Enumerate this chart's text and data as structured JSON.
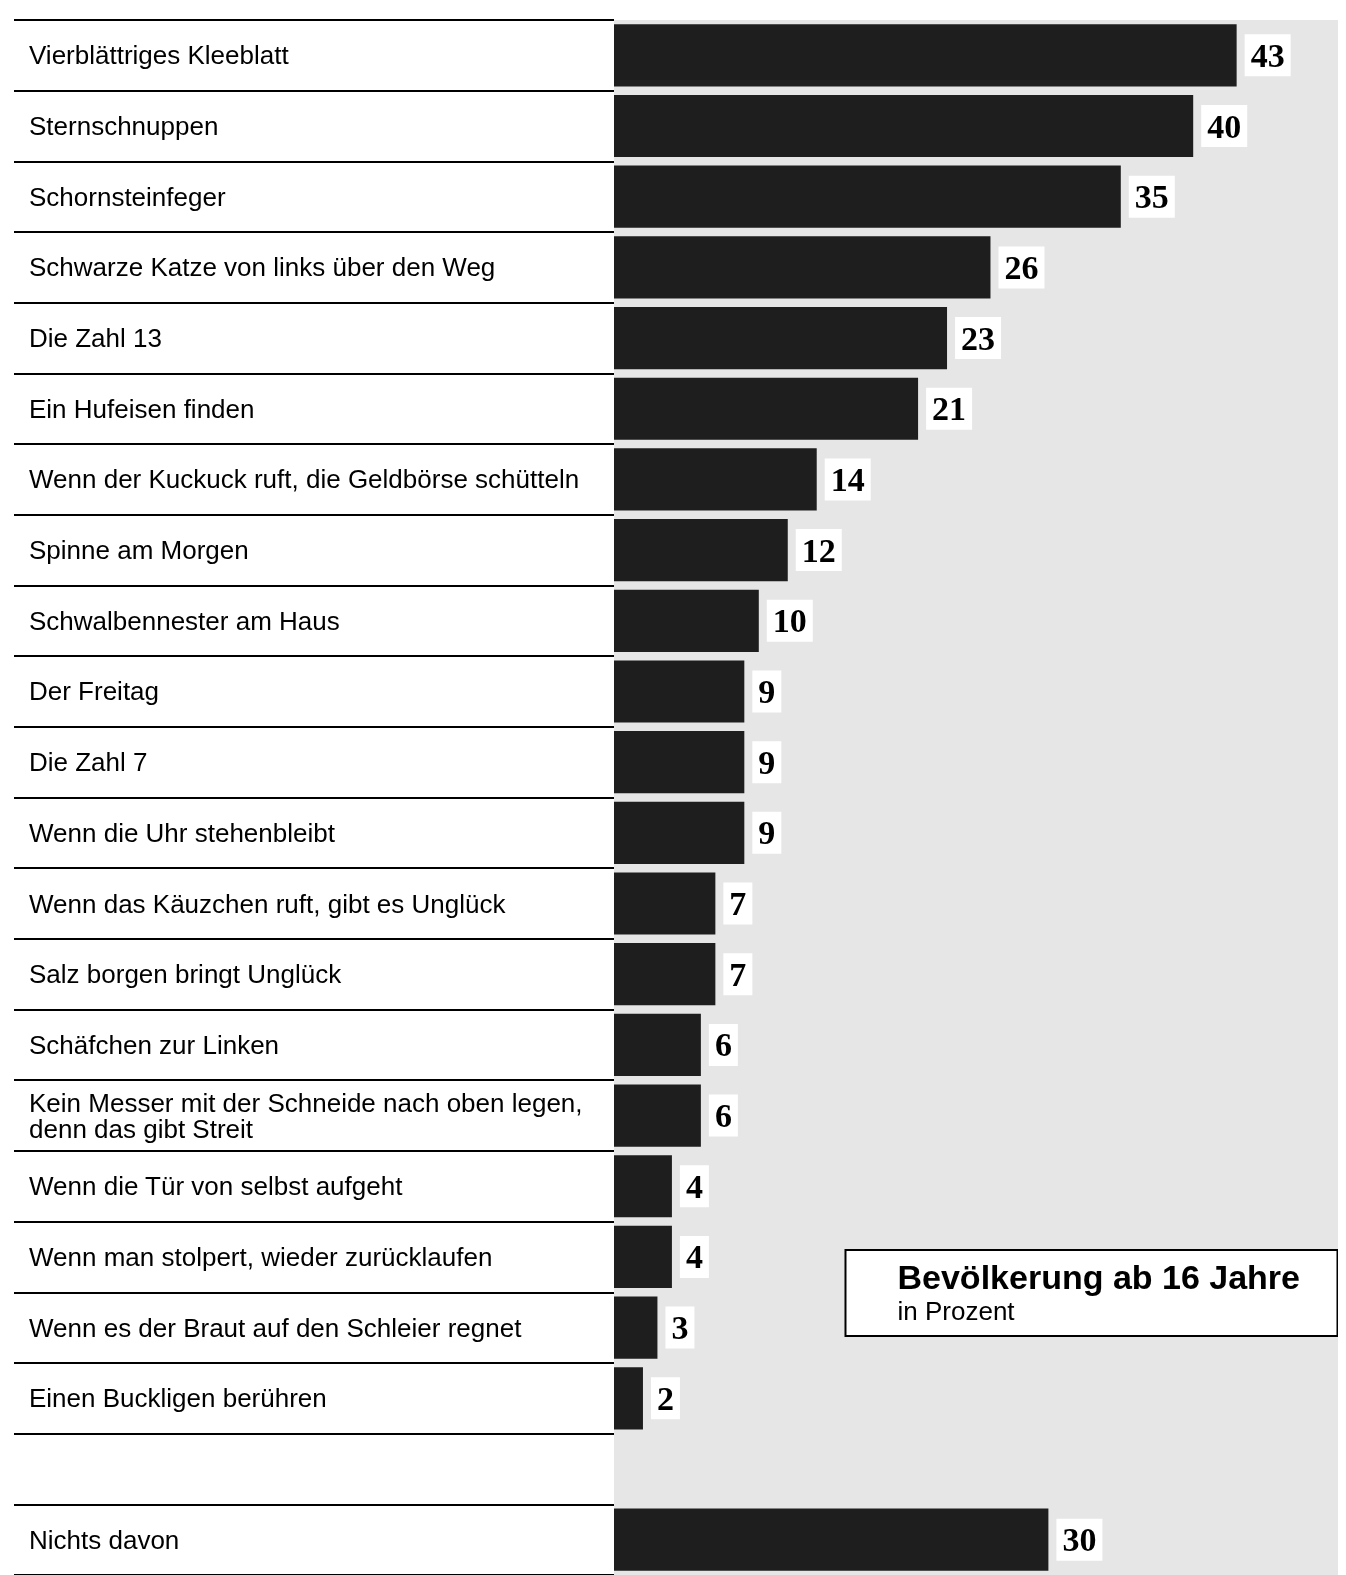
{
  "chart_data": {
    "type": "bar",
    "orientation": "horizontal",
    "title": "Bevölkerung ab 16 Jahre",
    "subtitle": "in Prozent",
    "categories": [
      "Vierblättriges Kleeblatt",
      "Sternschnuppen",
      "Schornsteinfeger",
      "Schwarze Katze von links über den Weg",
      "Die Zahl 13",
      "Ein Hufeisen finden",
      "Wenn der Kuckuck ruft, die Geldbörse schütteln",
      "Spinne am Morgen",
      "Schwalbennester am Haus",
      "Der Freitag",
      "Die Zahl 7",
      "Wenn die Uhr stehenbleibt",
      "Wenn das Käuzchen ruft, gibt es Unglück",
      "Salz borgen bringt Unglück",
      "Schäfchen zur Linken",
      "Kein Messer mit der Schneide nach oben legen, denn das gibt Streit",
      "Wenn die Tür von selbst aufgeht",
      "Wenn man stolpert, wieder zurücklaufen",
      "Wenn es der Braut auf den Schleier regnet",
      "Einen Buckligen berühren",
      null,
      "Nichts davon"
    ],
    "values": [
      43,
      40,
      35,
      26,
      23,
      21,
      14,
      12,
      10,
      9,
      9,
      9,
      7,
      7,
      6,
      6,
      4,
      4,
      3,
      2,
      null,
      30
    ],
    "color": "#1e1e1e",
    "xlim": [
      0,
      50
    ],
    "data_labels": true,
    "tick_labels": "y"
  }
}
